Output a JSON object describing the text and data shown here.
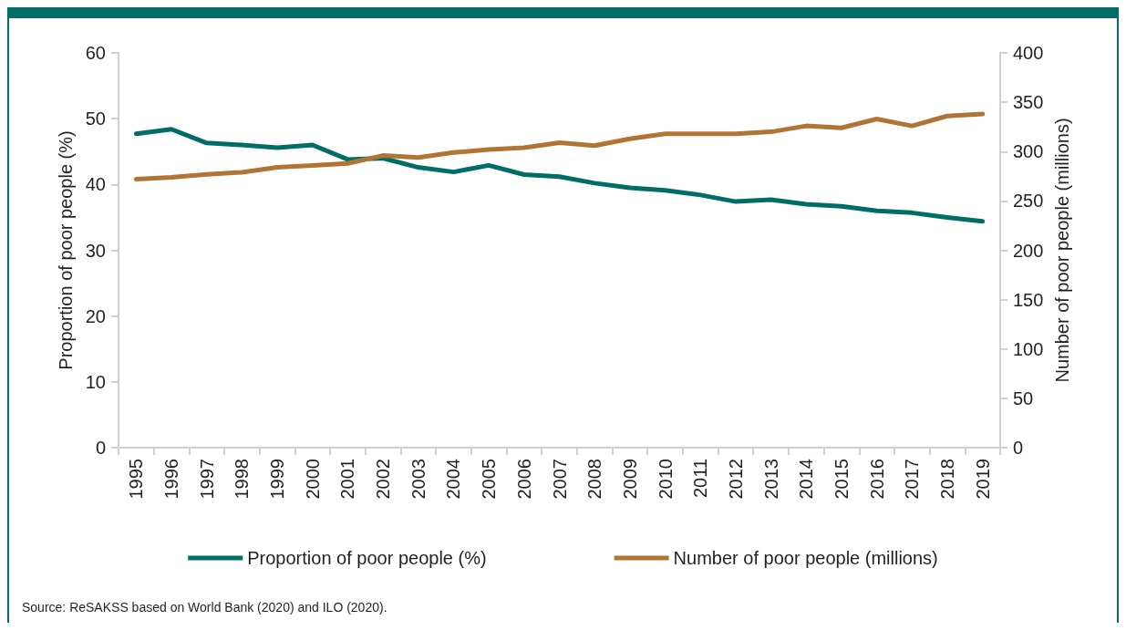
{
  "chart_data": {
    "type": "line",
    "categories": [
      "1995",
      "1996",
      "1997",
      "1998",
      "1999",
      "2000",
      "2001",
      "2002",
      "2003",
      "2004",
      "2005",
      "2006",
      "2007",
      "2008",
      "2009",
      "2010",
      "2011",
      "2012",
      "2013",
      "2014",
      "2015",
      "2016",
      "2017",
      "2018",
      "2019"
    ],
    "series": [
      {
        "name": "Proportion of poor people (%)",
        "color": "#006e67",
        "values": [
          47.7,
          48.4,
          46.3,
          46.0,
          45.6,
          46.0,
          43.8,
          44.0,
          42.6,
          41.9,
          42.9,
          41.5,
          41.2,
          40.2,
          39.5,
          39.1,
          38.4,
          37.4,
          37.7,
          37.0,
          36.7,
          36.0,
          35.7,
          35.0,
          34.4
        ]
      },
      {
        "name": "Number of poor people (millions)",
        "color": "#b07535",
        "axis": "y2",
        "values": [
          272,
          274,
          277,
          279,
          284,
          286,
          288,
          296,
          294,
          299,
          302,
          304,
          309,
          306,
          313,
          318,
          318,
          318,
          320,
          326,
          324,
          333,
          326,
          336,
          338
        ]
      }
    ],
    "ylabel": "Proportion of poor people (%)",
    "y2label": "Number of poor people (millions)",
    "ylim": [
      0,
      60
    ],
    "yticks": [
      0,
      10,
      20,
      30,
      40,
      50,
      60
    ],
    "y2lim": [
      0,
      400
    ],
    "y2ticks": [
      0,
      50,
      100,
      150,
      200,
      250,
      300,
      350,
      400
    ],
    "grid": false,
    "legend": "bottom",
    "marker": "none",
    "line_style": "solid",
    "annotations": [
      "Source: ReSAKSS based on World Bank (2020) and ILO (2020)."
    ]
  }
}
